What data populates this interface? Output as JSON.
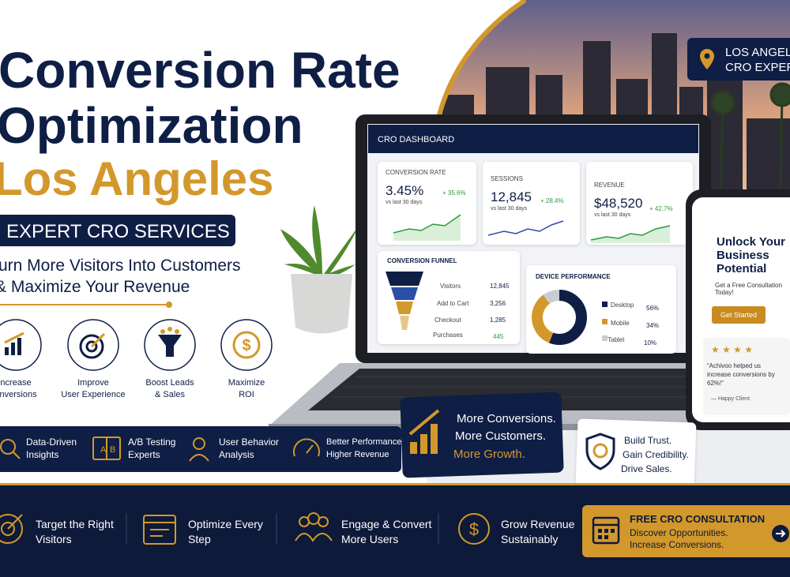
{
  "header": {
    "title_line1": "Conversion Rate",
    "title_line2": "Optimization",
    "title_line3": "Los Angeles",
    "badge": "EXPERT CRO SERVICES",
    "tagline_line1": "urn More Visitors Into Customers",
    "tagline_line2": "& Maximize Your Revenue"
  },
  "location_badge": {
    "line1": "LOS ANGELE",
    "line2": "CRO EXPERT"
  },
  "features": [
    {
      "line1": "ncrease",
      "line2": "onversions"
    },
    {
      "line1": "Improve",
      "line2": "User Experience"
    },
    {
      "line1": "Boost Leads",
      "line2": "& Sales"
    },
    {
      "line1": "Maximize",
      "line2": "ROI"
    }
  ],
  "strip": [
    {
      "line1": "Data-Driven",
      "line2": "Insights"
    },
    {
      "line1": "A/B Testing",
      "line2": "Experts"
    },
    {
      "line1": "User Behavior",
      "line2": "Analysis"
    },
    {
      "line1": "Better Performance",
      "line2": "Higher Revenue"
    }
  ],
  "dashboard": {
    "title": "CRO DASHBOARD",
    "metrics": [
      {
        "label": "CONVERSION RATE",
        "value": "3.45%",
        "change": "+ 35.6%",
        "period": "vs last 30 days"
      },
      {
        "label": "SESSIONS",
        "value": "12,845",
        "change": "+ 28.4%",
        "period": "vs last 30 days"
      },
      {
        "label": "REVENUE",
        "value": "$48,520",
        "change": "+ 42.7%",
        "period": "vs last 30 days"
      }
    ],
    "funnel": {
      "title": "CONVERSION FUNNEL",
      "rows": [
        {
          "label": "Visitors",
          "value": "12,845"
        },
        {
          "label": "Add to Cart",
          "value": "3,256"
        },
        {
          "label": "Checkout",
          "value": "1,285"
        },
        {
          "label": "Purchases",
          "value": "445"
        }
      ]
    },
    "devices": {
      "title": "DEVICE PERFORMANCE",
      "rows": [
        {
          "label": "Desktop",
          "value": "56%"
        },
        {
          "label": "Mobile",
          "value": "34%"
        },
        {
          "label": "Tablet",
          "value": "10%"
        }
      ]
    }
  },
  "phone": {
    "headline": "Unlock Your Business Potential",
    "sub": "Get a Free Consultation Today!",
    "button": "Get Started",
    "quote": "“Achivoo helped us increase conversions by 62%!”",
    "author": "— Happy Client"
  },
  "callout": {
    "line1": "More Conversions.",
    "line2": "More Customers.",
    "line3": "More Growth."
  },
  "trust": {
    "line1": "Build Trust.",
    "line2": "Gain Credibility.",
    "line3": "Drive Sales."
  },
  "footer": {
    "items": [
      {
        "line1": "Target the Right",
        "line2": "Visitors"
      },
      {
        "line1": "Optimize Every",
        "line2": "Step"
      },
      {
        "line1": "Engage & Convert",
        "line2": "More Users"
      },
      {
        "line1": "Grow Revenue",
        "line2": "Sustainably"
      }
    ],
    "cta": {
      "title": "FREE CRO CONSULTATION",
      "line1": "Discover Opportunities.",
      "line2": "Increase Conversions."
    }
  }
}
